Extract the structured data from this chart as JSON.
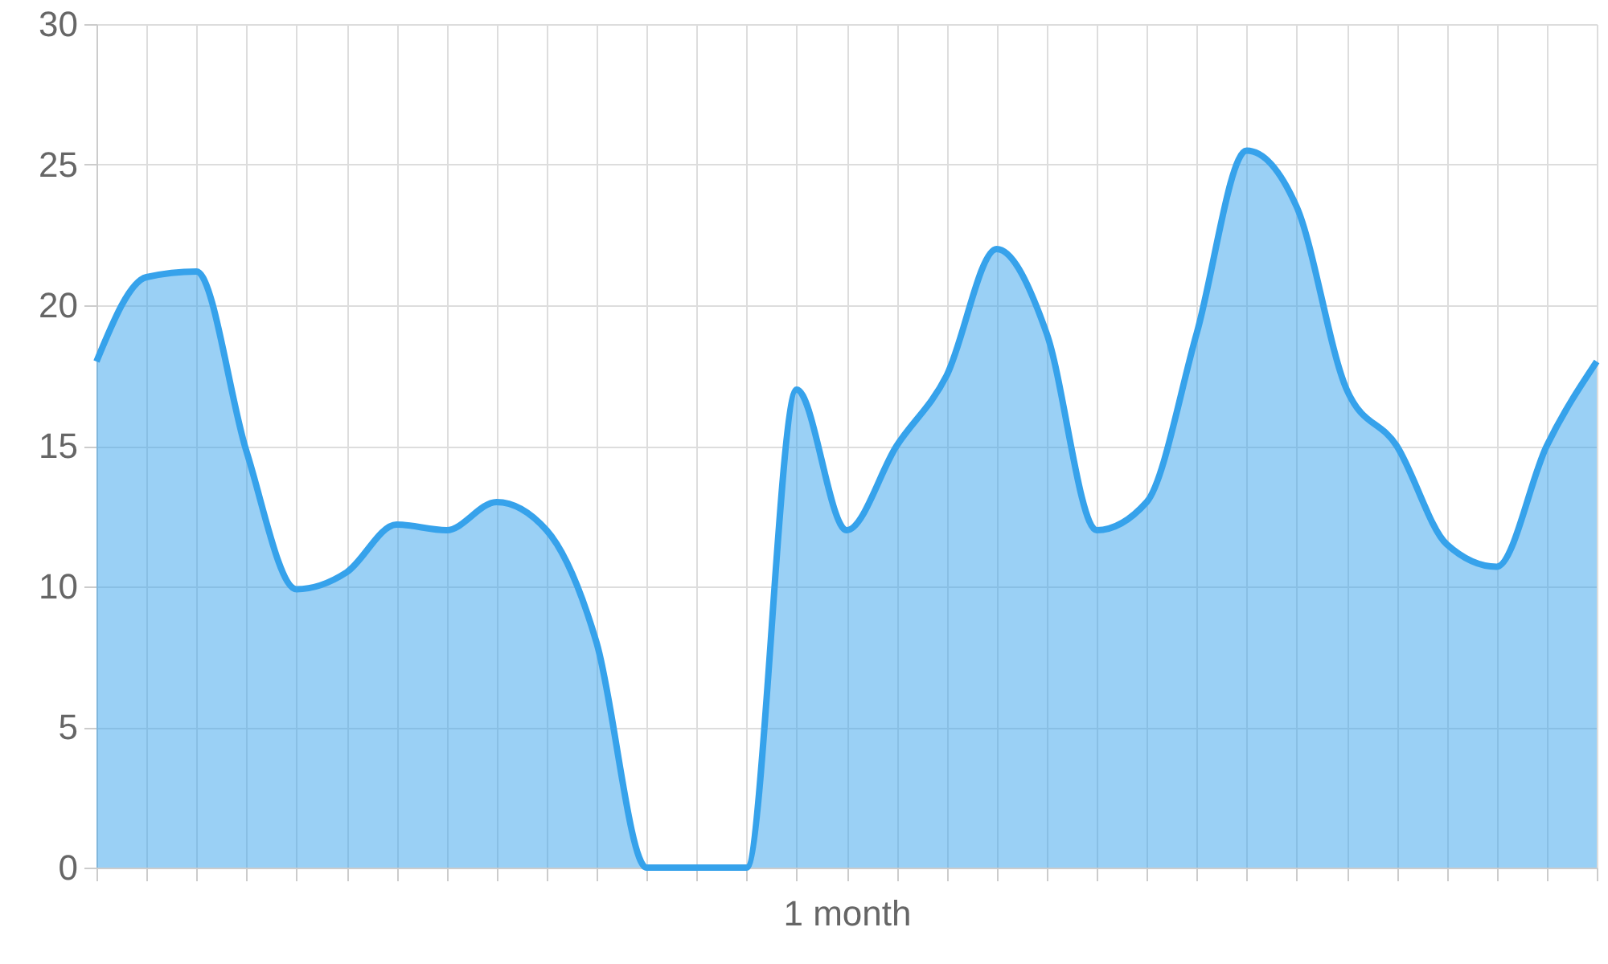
{
  "chart_data": {
    "type": "area",
    "xlabel": "1 month",
    "categories": [
      null,
      null,
      null,
      null,
      null,
      null,
      null,
      null,
      null,
      null,
      null,
      null,
      null,
      null,
      null,
      null,
      null,
      null,
      null,
      null,
      null,
      null,
      null,
      null,
      null,
      null,
      null,
      null,
      null,
      null,
      null
    ],
    "series": [
      {
        "color": "#36a2eb",
        "values": [
          18,
          21,
          21.2,
          14.8,
          9.9,
          10.5,
          12.2,
          12,
          13,
          12,
          8,
          0,
          0,
          0,
          17,
          12,
          15,
          17.5,
          22,
          19,
          12,
          13,
          19,
          25.5,
          23.5,
          17,
          15,
          11.5,
          10.7,
          15,
          18
        ]
      }
    ],
    "ylim": [
      0,
      30
    ],
    "yticks": [
      0,
      5,
      10,
      15,
      20,
      25,
      30
    ],
    "grid": true,
    "tick_labels": "y"
  }
}
